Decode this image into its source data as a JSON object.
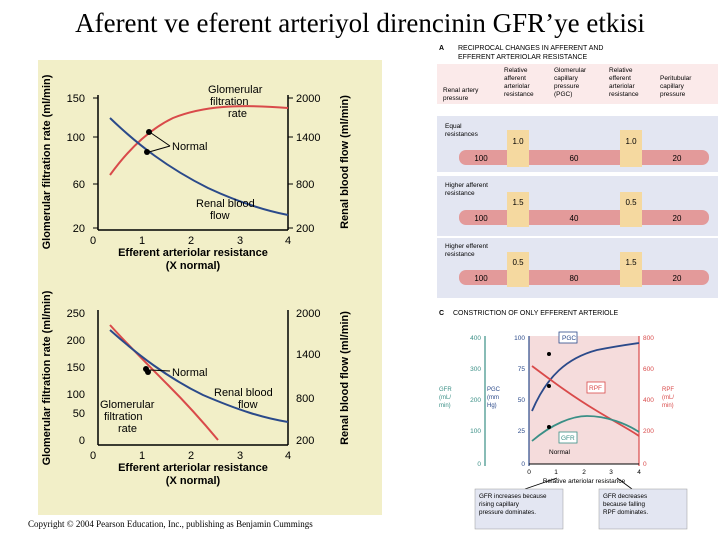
{
  "title": "Aferent ve eferent arteriyol direncinin GFR’ye etkisi",
  "copyright": "Copyright © 2004 Pearson Education, Inc., publishing as Benjamin Cummings",
  "colors": {
    "gfr": "#d94a4a",
    "rbf": "#2b4a8a",
    "panel": "#f2efc8",
    "teal": "#3a8f86",
    "pink": "#f2dede"
  },
  "graph_top": {
    "ylabel_left": "Glomerular filtration rate (ml/min)",
    "ylabel_right": "Renal blood flow (ml/min)",
    "xlabel": "Efferent arteriolar resistance",
    "xlabel_sub": "(X normal)",
    "yticks_left": [
      "150",
      "100",
      "60",
      "20"
    ],
    "yticks_right": [
      "2000",
      "1400",
      "800",
      "200"
    ],
    "xticks": [
      "0",
      "1",
      "2",
      "3",
      "4"
    ],
    "label_gfr": "Glomerular filtration rate",
    "label_rbf": "Renal blood flow",
    "label_normal": "Normal"
  },
  "graph_bottom": {
    "ylabel_left": "Glomerular filtration rate (ml/min)",
    "ylabel_right": "Renal blood flow (ml/min)",
    "xlabel": "Efferent arteriolar resistance",
    "xlabel_sub": "(X normal)",
    "yticks_left": [
      "250",
      "200",
      "150",
      "100",
      "50",
      "0"
    ],
    "yticks_right": [
      "2000",
      "1400",
      "800",
      "200"
    ],
    "xticks": [
      "0",
      "1",
      "2",
      "3",
      "4"
    ],
    "label_gfr": "Glomerular filtration rate",
    "label_rbf": "Renal blood flow",
    "label_normal": "Normal"
  },
  "panel_a": {
    "letter": "A",
    "title": "RECIPROCAL CHANGES IN AFFERENT AND EFFERENT ARTERIOLAR RESISTANCE",
    "headers": [
      "Renal artery pressure",
      "Relative afferent arteriolar resistance",
      "Glomerular capillary pressure (PGC)",
      "Relative efferent arteriolar resistance",
      "Peritubular capillary pressure"
    ],
    "rows": [
      {
        "label": "Equal resistances",
        "aff": "1.0",
        "eff": "1.0",
        "values": [
          "100",
          "60",
          "20"
        ]
      },
      {
        "label": "Higher afferent resistance",
        "aff": "1.5",
        "eff": "0.5",
        "values": [
          "100",
          "40",
          "20"
        ]
      },
      {
        "label": "Higher efferent resistance",
        "aff": "0.5",
        "eff": "1.5",
        "values": [
          "100",
          "80",
          "20"
        ]
      }
    ]
  },
  "panel_c": {
    "letter": "C",
    "title": "CONSTRICTION OF ONLY EFFERENT ARTERIOLE",
    "axis_gfr": [
      "400",
      "300",
      "200",
      "100",
      "0"
    ],
    "axis_pgc": [
      "100",
      "75",
      "50",
      "25",
      "0"
    ],
    "axis_rpf": [
      "800",
      "600",
      "400",
      "200",
      "0"
    ],
    "label_gfr_axis": "GFR (mL/ min)",
    "label_pgc_axis": "PGC (mm Hg)",
    "label_rpf_axis": "RPF (mL/ min)",
    "xticks": [
      "0",
      "1",
      "2",
      "3",
      "4"
    ],
    "xlabel": "Relative arteriolar resistance",
    "curve_pgc": "PGC",
    "curve_rpf": "RPF",
    "curve_gfr": "GFR",
    "normal": "Normal",
    "note_left": "GFR increases because rising capillary pressure dominates.",
    "note_right": "GFR decreases because falling RPF dominates."
  }
}
